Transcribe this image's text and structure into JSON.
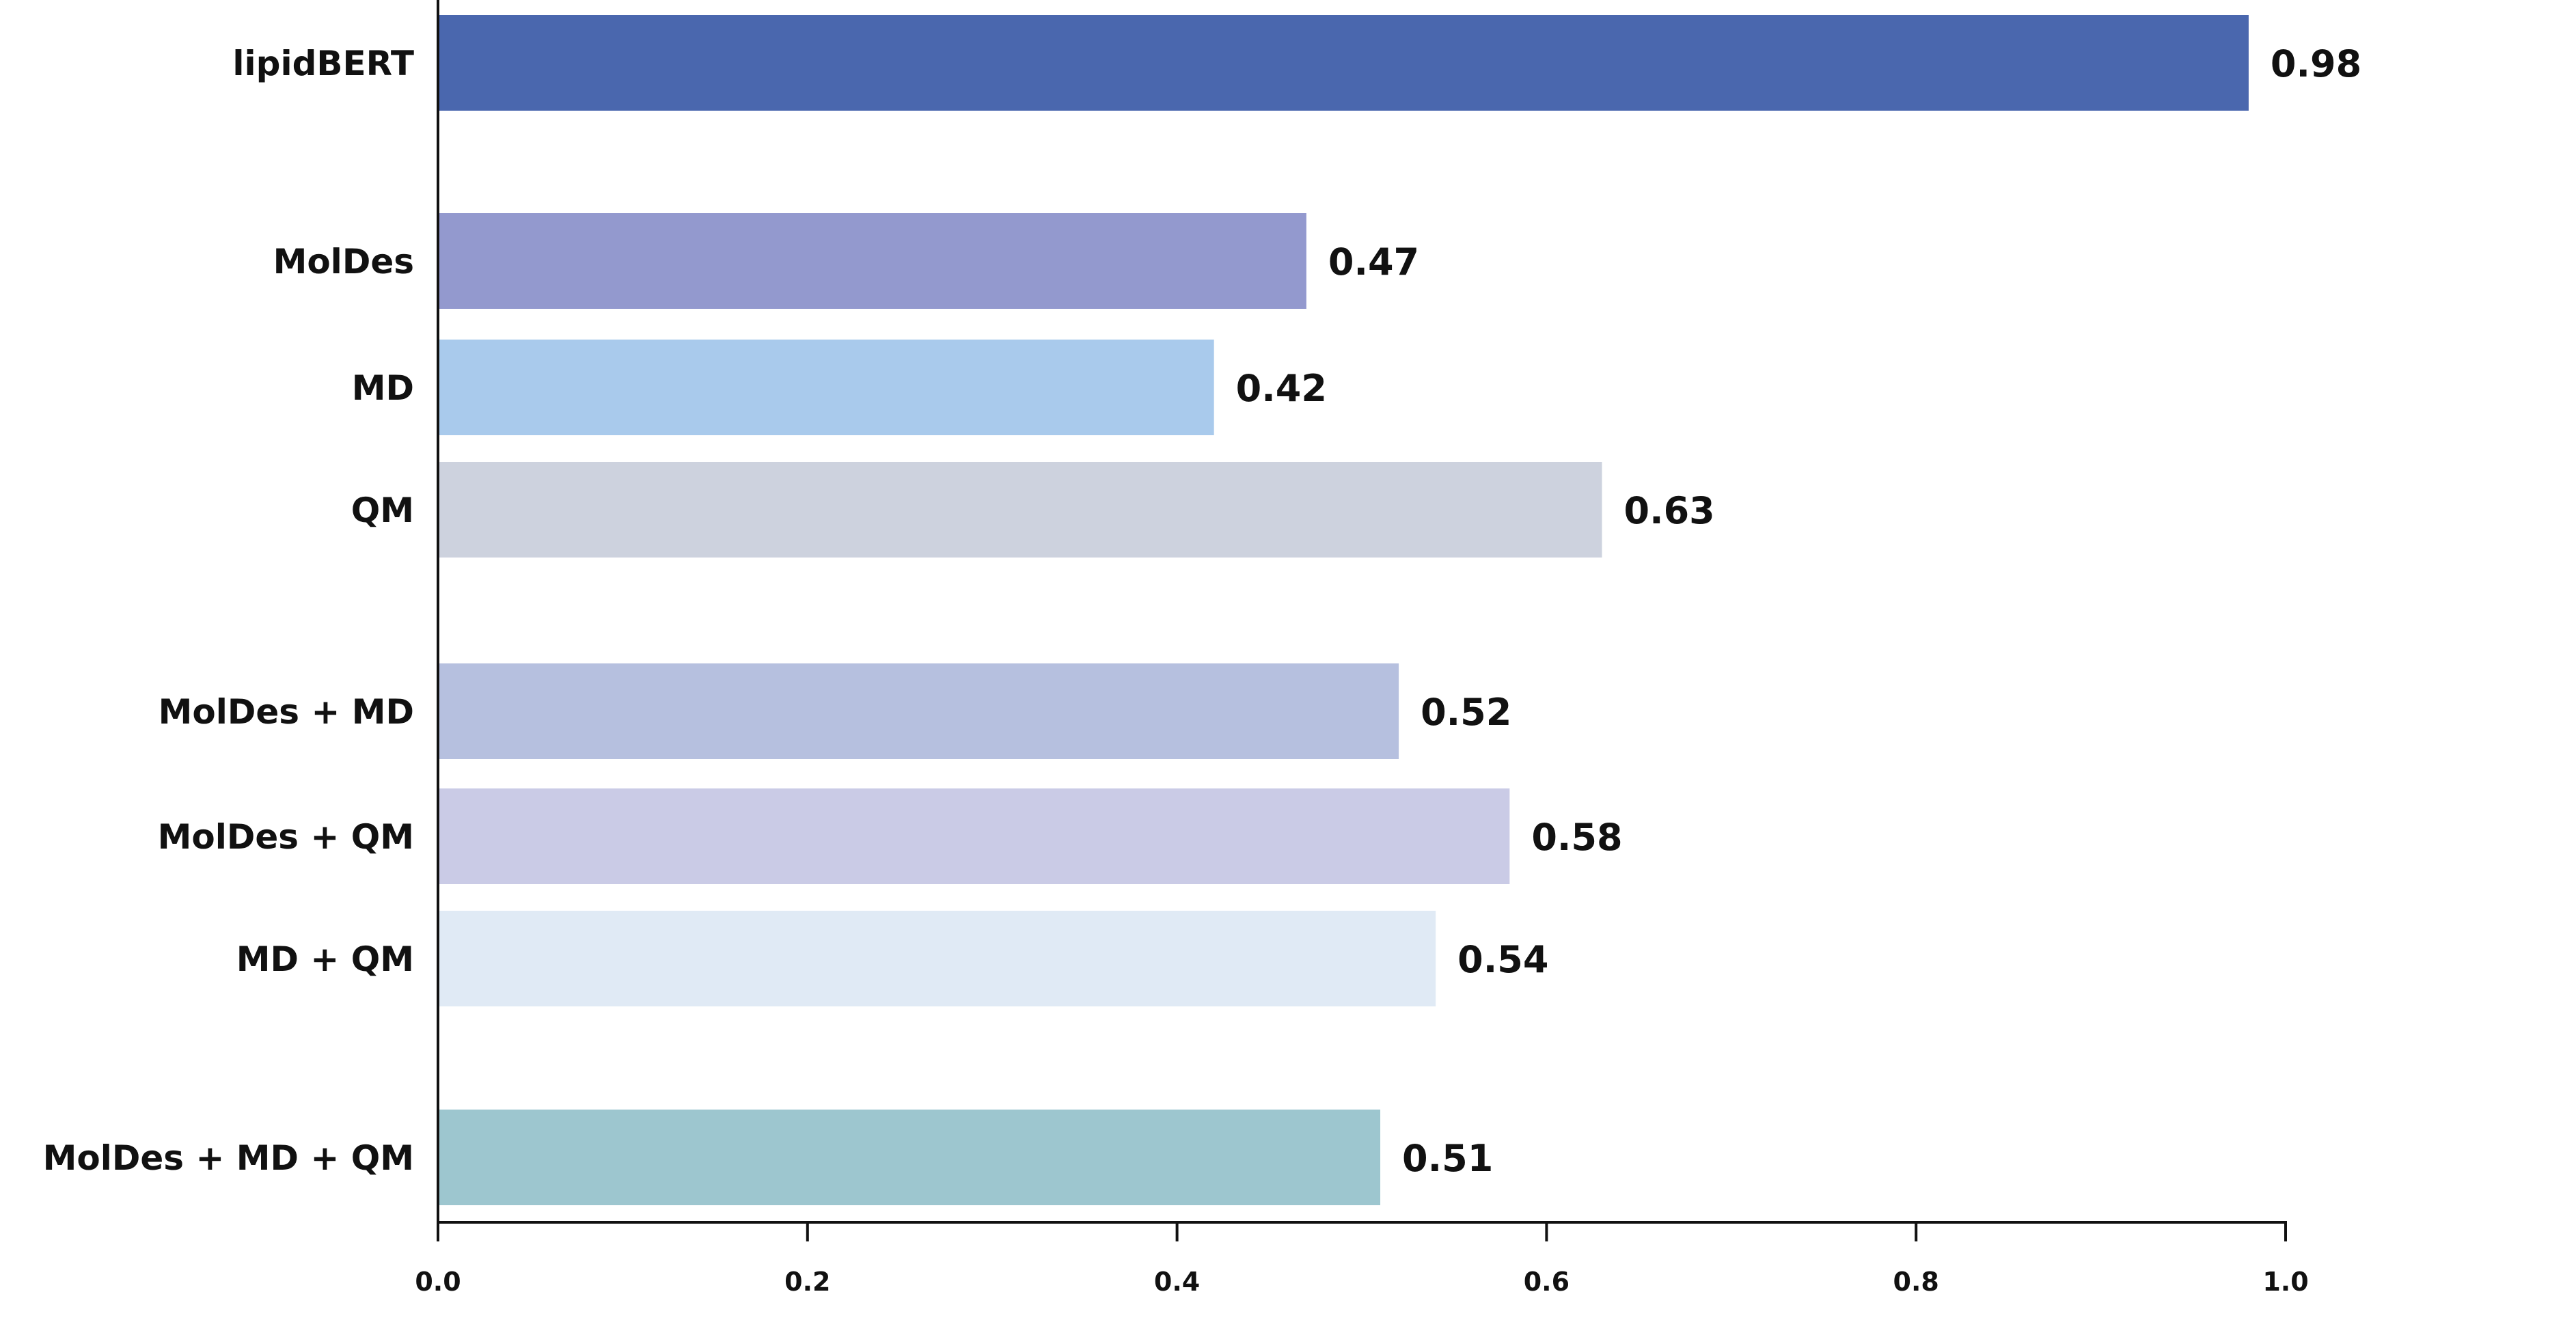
{
  "chart_data": {
    "type": "bar",
    "orientation": "horizontal",
    "title": "",
    "xlabel": "",
    "ylabel": "",
    "xlim": [
      0.0,
      1.0
    ],
    "grid": false,
    "legend": "none",
    "categories": [
      "lipidBERT",
      "MolDes",
      "MD",
      "QM",
      "MolDes + MD",
      "MolDes + QM",
      "MD + QM",
      "MolDes + MD + QM"
    ],
    "values": [
      0.98,
      0.47,
      0.42,
      0.63,
      0.52,
      0.58,
      0.54,
      0.51
    ],
    "value_labels": [
      "0.98",
      "0.47",
      "0.42",
      "0.63",
      "0.52",
      "0.58",
      "0.54",
      "0.51"
    ],
    "groups": [
      [
        0
      ],
      [
        1,
        2,
        3
      ],
      [
        4,
        5,
        6
      ],
      [
        7
      ]
    ],
    "colors": [
      "#4a67ae",
      "#9399ce",
      "#a9caec",
      "#cdd2de",
      "#b6c0df",
      "#cacbe6",
      "#e0eaf5",
      "#9dc6cf"
    ],
    "xticks": [
      0.0,
      0.2,
      0.4,
      0.6,
      0.8,
      1.0
    ],
    "xtick_labels": [
      "0.0",
      "0.2",
      "0.4",
      "0.6",
      "0.8",
      "1.0"
    ]
  }
}
